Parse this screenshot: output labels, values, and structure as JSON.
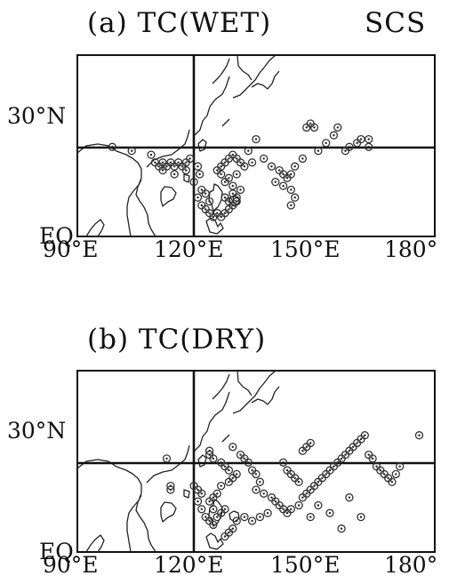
{
  "panels": [
    {
      "title": "(a) TC(WET)",
      "region_label": "SCS",
      "lat_labels": [
        "30°N",
        "EQ"
      ],
      "lon_labels": [
        "90°E",
        "120°E",
        "150°E",
        "180°"
      ],
      "genesis_points": [
        [
          99,
          23
        ],
        [
          104,
          22
        ],
        [
          109,
          21
        ],
        [
          110,
          19
        ],
        [
          111,
          18
        ],
        [
          112,
          19
        ],
        [
          113,
          18
        ],
        [
          114,
          19
        ],
        [
          115,
          18
        ],
        [
          116,
          19
        ],
        [
          117,
          18
        ],
        [
          118,
          19
        ],
        [
          119,
          20
        ],
        [
          112,
          17
        ],
        [
          115,
          16
        ],
        [
          118,
          17
        ],
        [
          121,
          18
        ],
        [
          121.5,
          16
        ],
        [
          120,
          14
        ],
        [
          122,
          12
        ],
        [
          123,
          11
        ],
        [
          124,
          9
        ],
        [
          121,
          10
        ],
        [
          122,
          8
        ],
        [
          123,
          7
        ],
        [
          124,
          6
        ],
        [
          125,
          5
        ],
        [
          126,
          6
        ],
        [
          127,
          5
        ],
        [
          128,
          6
        ],
        [
          129,
          7
        ],
        [
          130,
          8
        ],
        [
          131,
          9
        ],
        [
          129,
          9
        ],
        [
          128,
          10
        ],
        [
          130,
          11
        ],
        [
          131,
          10
        ],
        [
          132,
          12
        ],
        [
          130,
          13
        ],
        [
          128,
          14
        ],
        [
          129,
          15
        ],
        [
          131,
          16
        ],
        [
          127,
          16
        ],
        [
          126,
          17
        ],
        [
          127,
          18
        ],
        [
          128,
          19
        ],
        [
          129,
          20
        ],
        [
          130,
          21
        ],
        [
          131,
          20
        ],
        [
          132,
          19
        ],
        [
          133,
          18
        ],
        [
          135,
          19
        ],
        [
          134,
          22
        ],
        [
          136,
          25
        ],
        [
          138,
          20
        ],
        [
          140,
          18
        ],
        [
          142,
          17
        ],
        [
          143,
          16
        ],
        [
          144,
          15
        ],
        [
          145,
          16
        ],
        [
          146,
          18
        ],
        [
          148,
          20
        ],
        [
          152,
          22
        ],
        [
          154,
          24
        ],
        [
          156,
          26
        ],
        [
          157,
          28
        ],
        [
          159,
          22
        ],
        [
          160,
          23
        ],
        [
          162,
          24
        ],
        [
          163,
          25
        ],
        [
          165,
          25
        ],
        [
          165,
          23
        ],
        [
          149,
          28
        ],
        [
          150,
          29
        ],
        [
          151,
          28
        ],
        [
          141,
          14
        ],
        [
          143,
          13
        ],
        [
          145,
          12
        ],
        [
          146,
          10
        ],
        [
          145,
          8
        ]
      ]
    },
    {
      "title": "(b) TC(DRY)",
      "region_label": "",
      "lat_labels": [
        "30°N",
        "EQ"
      ],
      "lon_labels": [
        "90°E",
        "120°E",
        "150°E",
        "180°"
      ],
      "genesis_points": [
        [
          113,
          24
        ],
        [
          114,
          16
        ],
        [
          114,
          17
        ],
        [
          120,
          17
        ],
        [
          121,
          16
        ],
        [
          122,
          15
        ],
        [
          121,
          13
        ],
        [
          122,
          11
        ],
        [
          123,
          9
        ],
        [
          124,
          8
        ],
        [
          125,
          7
        ],
        [
          126,
          9
        ],
        [
          127,
          10
        ],
        [
          128,
          11
        ],
        [
          125,
          11
        ],
        [
          124,
          13
        ],
        [
          125,
          14
        ],
        [
          126,
          15
        ],
        [
          127,
          17
        ],
        [
          129,
          18
        ],
        [
          130,
          19
        ],
        [
          131,
          20
        ],
        [
          129,
          21
        ],
        [
          128,
          22
        ],
        [
          127,
          23
        ],
        [
          125,
          24
        ],
        [
          124,
          25
        ],
        [
          124,
          26
        ],
        [
          130,
          27
        ],
        [
          132,
          25
        ],
        [
          133,
          24
        ],
        [
          134,
          23
        ],
        [
          135,
          21
        ],
        [
          136,
          20
        ],
        [
          137,
          18
        ],
        [
          136,
          16
        ],
        [
          138,
          15
        ],
        [
          140,
          14
        ],
        [
          141,
          13
        ],
        [
          142,
          12
        ],
        [
          143,
          11
        ],
        [
          144,
          10
        ],
        [
          145,
          11
        ],
        [
          147,
          12
        ],
        [
          148,
          14
        ],
        [
          149,
          15
        ],
        [
          150,
          16
        ],
        [
          151,
          17
        ],
        [
          152,
          18
        ],
        [
          153,
          19
        ],
        [
          154,
          20
        ],
        [
          155,
          21
        ],
        [
          156,
          22
        ],
        [
          157,
          23
        ],
        [
          158,
          24
        ],
        [
          159,
          25
        ],
        [
          160,
          26
        ],
        [
          161,
          27
        ],
        [
          162,
          28
        ],
        [
          163,
          29
        ],
        [
          164,
          30
        ],
        [
          165,
          25
        ],
        [
          166,
          24
        ],
        [
          167,
          22
        ],
        [
          168,
          21
        ],
        [
          169,
          20
        ],
        [
          170,
          19
        ],
        [
          171,
          18
        ],
        [
          172,
          20
        ],
        [
          173,
          22
        ],
        [
          148,
          26
        ],
        [
          149,
          27
        ],
        [
          150,
          28
        ],
        [
          143,
          23
        ],
        [
          144,
          21
        ],
        [
          145,
          20
        ],
        [
          146,
          19
        ],
        [
          147,
          18
        ],
        [
          139,
          10
        ],
        [
          137,
          9
        ],
        [
          135,
          8
        ],
        [
          133,
          9
        ],
        [
          131,
          8
        ],
        [
          130,
          6
        ],
        [
          129,
          5
        ],
        [
          128,
          4
        ],
        [
          160,
          14
        ],
        [
          163,
          9
        ],
        [
          158,
          6
        ],
        [
          155,
          10
        ],
        [
          150,
          9
        ],
        [
          152,
          12
        ],
        [
          178,
          30
        ]
      ]
    }
  ]
}
